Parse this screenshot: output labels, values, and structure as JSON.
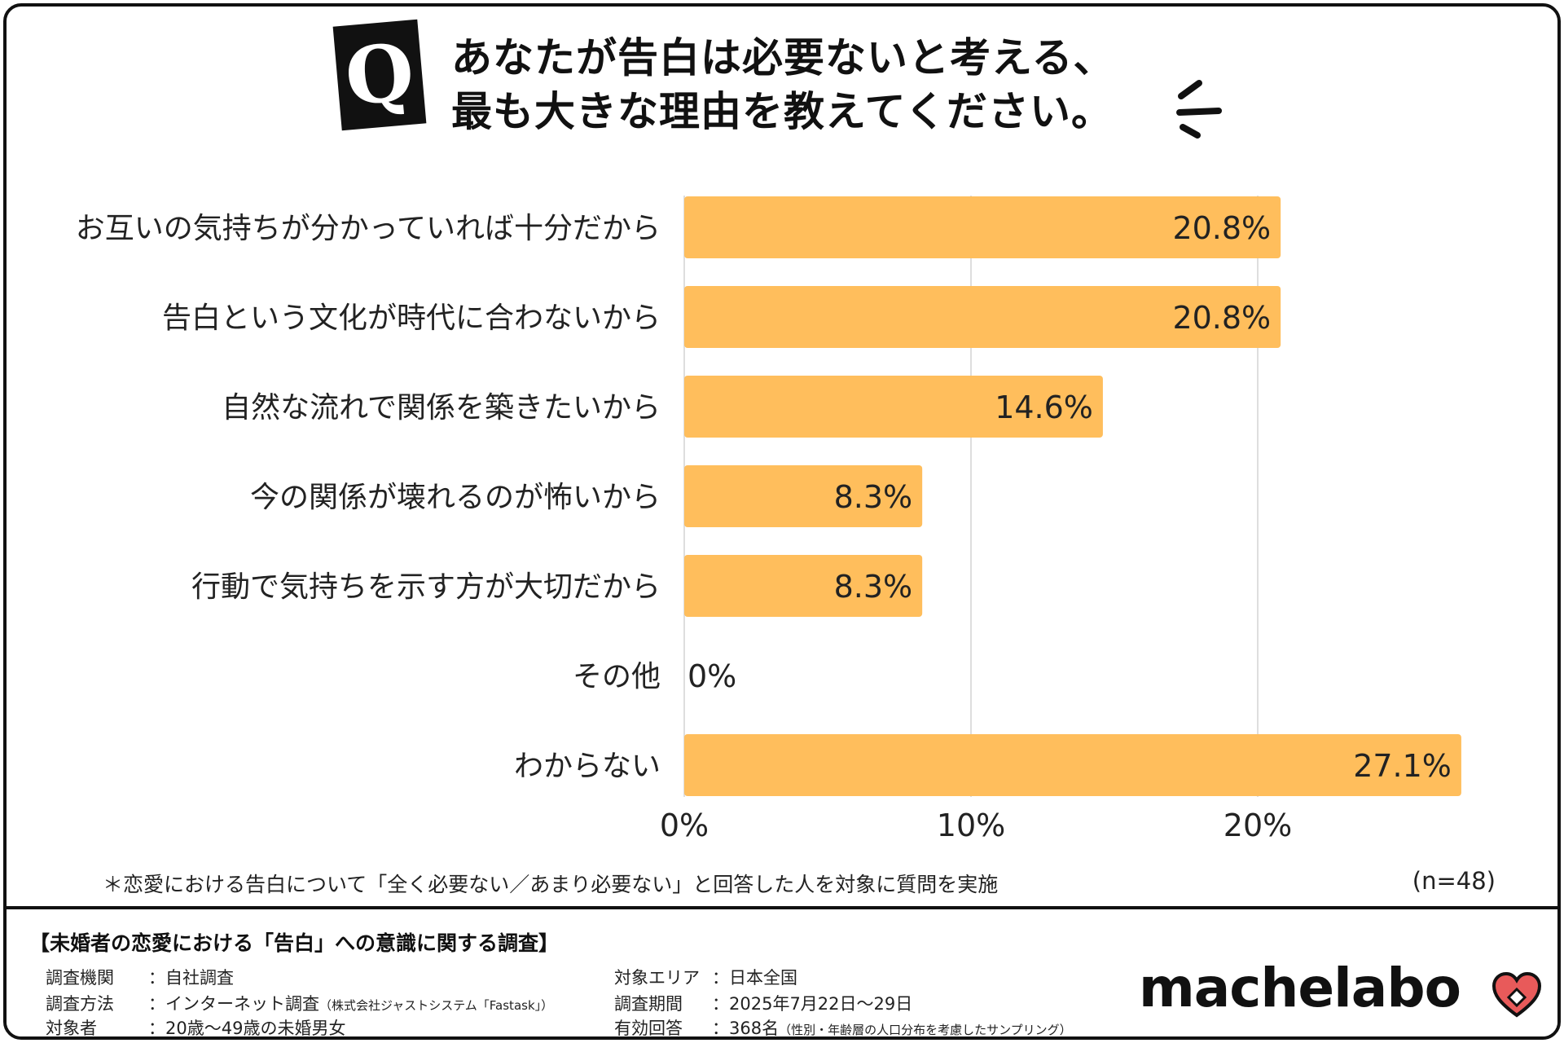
{
  "header": {
    "badge": "Q",
    "title_line1": "あなたが告白は必要ないと考える、",
    "title_line2": "最も大きな理由を教えてください。"
  },
  "colors": {
    "bar": "#FFBE5C",
    "grid": "#D4D4D4",
    "border": "#111111",
    "heart": "#E85A5A"
  },
  "chart_data": {
    "type": "bar",
    "orientation": "horizontal",
    "categories": [
      "お互いの気持ちが分かっていれば十分だから",
      "告白という文化が時代に合わないから",
      "自然な流れで関係を築きたいから",
      "今の関係が壊れるのが怖いから",
      "行動で気持ちを示す方が大切だから",
      "その他",
      "わからない"
    ],
    "values": [
      20.8,
      20.8,
      14.6,
      8.3,
      8.3,
      0,
      27.1
    ],
    "value_labels": [
      "20.8%",
      "20.8%",
      "14.6%",
      "8.3%",
      "8.3%",
      "0%",
      "27.1%"
    ],
    "x_ticks": [
      0,
      10,
      20
    ],
    "x_tick_labels": [
      "0%",
      "10%",
      "20%"
    ],
    "xlim": [
      0,
      30
    ],
    "grid": true
  },
  "note": "＊恋愛における告白について「全く必要ない／あまり必要ない」と回答した人を対象に質問を実施",
  "sample_label": "(n=48)",
  "footer": {
    "title": "【未婚者の恋愛における「告白」への意識に関する調査】",
    "rows": [
      {
        "key": "調査機関",
        "value": "：自社調査"
      },
      {
        "key": "調査方法",
        "value": "：インターネット調査",
        "small": "（株式会社ジャストシステム「Fastask」）"
      },
      {
        "key": "対象者",
        "value": "：20歳〜49歳の未婚男女"
      },
      {
        "key": "対象エリア",
        "value": "：日本全国"
      },
      {
        "key": "調査期間",
        "value": "：2025年7月22日〜29日"
      },
      {
        "key": "有効回答",
        "value": "：368名",
        "small": "（性別・年齢層の人口分布を考慮したサンプリング）"
      }
    ],
    "logo": "machelabo"
  }
}
